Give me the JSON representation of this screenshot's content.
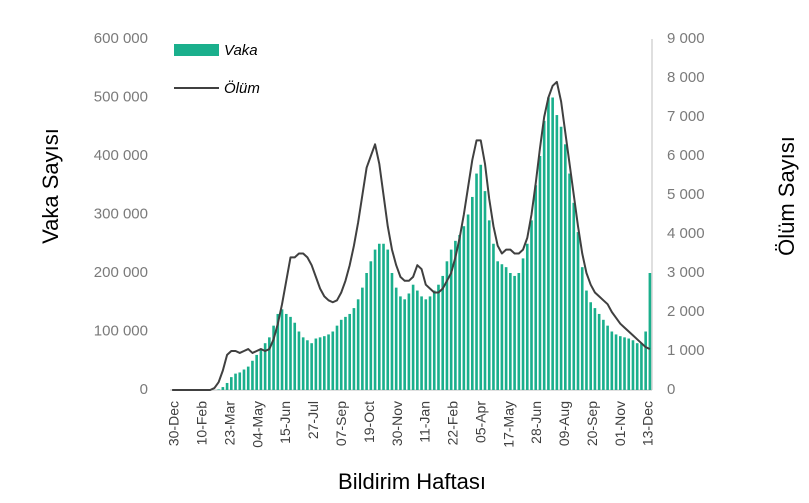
{
  "chart_data": {
    "type": "bar",
    "xlabel": "Bildirim Haftası",
    "ylabel_left": "Vaka Sayısı",
    "ylabel_right": "Ölüm Sayısı",
    "ylim_left": [
      0,
      600000
    ],
    "ylim_right": [
      0,
      9000
    ],
    "yticks_left": [
      "0",
      "100 000",
      "200 000",
      "300 000",
      "400 000",
      "500 000",
      "600 000"
    ],
    "yticks_right": [
      "0",
      "1 000",
      "2 000",
      "3 000",
      "4 000",
      "5 000",
      "6 000",
      "7 000",
      "8 000",
      "9 000"
    ],
    "x_tick_labels": [
      "30-Dec",
      "10-Feb",
      "23-Mar",
      "04-May",
      "15-Jun",
      "27-Jul",
      "07-Sep",
      "19-Oct",
      "30-Nov",
      "11-Jan",
      "22-Feb",
      "05-Apr",
      "17-May",
      "28-Jun",
      "09-Aug",
      "20-Sep",
      "01-Nov",
      "13-Dec"
    ],
    "grid": false,
    "legend_position": "top-left",
    "colors": {
      "vaka": "#1aaf8c",
      "olum": "#404040"
    },
    "series": [
      {
        "name": "Vaka",
        "type": "bar",
        "axis": "left",
        "values": [
          0,
          0,
          0,
          0,
          0,
          0,
          0,
          0,
          0,
          0,
          0,
          1000,
          5000,
          12000,
          22000,
          28000,
          30000,
          35000,
          40000,
          50000,
          60000,
          70000,
          80000,
          90000,
          110000,
          130000,
          138000,
          130000,
          125000,
          115000,
          100000,
          90000,
          85000,
          80000,
          88000,
          90000,
          92000,
          95000,
          100000,
          110000,
          120000,
          125000,
          130000,
          140000,
          155000,
          175000,
          200000,
          220000,
          240000,
          250000,
          250000,
          240000,
          200000,
          175000,
          160000,
          155000,
          165000,
          180000,
          170000,
          160000,
          155000,
          160000,
          170000,
          180000,
          195000,
          220000,
          240000,
          255000,
          265000,
          280000,
          300000,
          330000,
          370000,
          385000,
          340000,
          290000,
          250000,
          220000,
          215000,
          210000,
          200000,
          195000,
          200000,
          225000,
          250000,
          290000,
          350000,
          400000,
          460000,
          500000,
          500000,
          470000,
          450000,
          420000,
          370000,
          320000,
          270000,
          210000,
          170000,
          150000,
          140000,
          130000,
          120000,
          110000,
          100000,
          95000,
          92000,
          90000,
          88000,
          85000,
          80000,
          80000,
          100000,
          200000
        ]
      },
      {
        "name": "Ölüm",
        "type": "line",
        "axis": "right",
        "values": [
          0,
          0,
          0,
          0,
          0,
          0,
          0,
          0,
          0,
          0,
          50,
          200,
          500,
          900,
          1000,
          1000,
          950,
          1000,
          1050,
          950,
          1000,
          1050,
          1000,
          1050,
          1300,
          1700,
          2200,
          2800,
          3400,
          3400,
          3500,
          3500,
          3400,
          3200,
          2900,
          2600,
          2400,
          2300,
          2250,
          2300,
          2500,
          2800,
          3200,
          3700,
          4300,
          5000,
          5700,
          6000,
          6300,
          5800,
          5000,
          4200,
          3600,
          3200,
          2900,
          2800,
          2800,
          2900,
          3200,
          3100,
          2700,
          2600,
          2500,
          2500,
          2600,
          2800,
          3000,
          3400,
          3900,
          4500,
          5200,
          5900,
          6400,
          6400,
          5800,
          4900,
          4200,
          3700,
          3500,
          3600,
          3600,
          3500,
          3500,
          3600,
          3900,
          4500,
          5300,
          6200,
          7000,
          7500,
          7800,
          7900,
          7400,
          6600,
          5800,
          5000,
          4200,
          3500,
          3000,
          2700,
          2500,
          2400,
          2300,
          2200,
          2000,
          1850,
          1700,
          1600,
          1500,
          1400,
          1300,
          1200,
          1100,
          1050
        ]
      }
    ]
  }
}
